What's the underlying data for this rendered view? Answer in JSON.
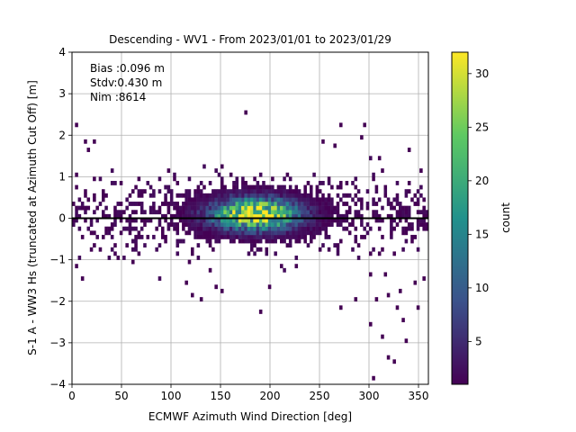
{
  "chart_data": {
    "type": "heatmap",
    "title": "Descending - WV1 - From 2023/01/01 to 2023/01/29",
    "xlabel": "ECMWF Azimuth Wind Direction [deg]",
    "ylabel": "S-1 A - WW3 Hs (truncated at Azimuth Cut Off) [m]",
    "xlim": [
      0,
      360
    ],
    "ylim": [
      -4,
      4
    ],
    "xticks": [
      "0",
      "50",
      "100",
      "150",
      "200",
      "250",
      "300",
      "350"
    ],
    "yticks": [
      "4",
      "3",
      "2",
      "1",
      "0",
      "−1",
      "−2",
      "−3",
      "−4"
    ],
    "grid": true,
    "annotations": [
      "Bias :0.096 m",
      "Stdv:0.430 m",
      "Nim :8614"
    ],
    "reference_line_y": 0,
    "colorbar": {
      "label": "count",
      "range": [
        1,
        32
      ],
      "ticks": [
        "30",
        "25",
        "20",
        "15",
        "10",
        "5"
      ],
      "colormap": "viridis"
    },
    "density_summary": {
      "core_band_y": [
        -0.9,
        1.0
      ],
      "peak_x": 185,
      "peak_y": 0.1,
      "peak_count": 32,
      "high_density_x_range": [
        135,
        215
      ]
    },
    "outliers": [
      [
        4,
        2.3
      ],
      [
        13,
        1.9
      ],
      [
        16,
        1.6
      ],
      [
        22,
        1.8
      ],
      [
        10,
        -1.5
      ],
      [
        3,
        -1.2
      ],
      [
        115,
        -1.6
      ],
      [
        122,
        -1.9
      ],
      [
        130,
        -2.0
      ],
      [
        140,
        -1.3
      ],
      [
        146,
        -1.7
      ],
      [
        150,
        -1.8
      ],
      [
        175,
        2.55
      ],
      [
        190,
        -2.25
      ],
      [
        200,
        -1.65
      ],
      [
        210,
        -1.2
      ],
      [
        225,
        -1.15
      ],
      [
        252,
        1.9
      ],
      [
        265,
        1.75
      ],
      [
        270,
        -2.2
      ],
      [
        272,
        2.25
      ],
      [
        285,
        -1.95
      ],
      [
        293,
        1.95
      ],
      [
        300,
        -2.6
      ],
      [
        305,
        -3.85
      ],
      [
        307,
        -2.0
      ],
      [
        312,
        -2.9
      ],
      [
        315,
        -1.4
      ],
      [
        318,
        -3.35
      ],
      [
        320,
        -1.9
      ],
      [
        325,
        -3.5
      ],
      [
        327,
        -2.15
      ],
      [
        330,
        -1.8
      ],
      [
        334,
        -2.5
      ],
      [
        336,
        -3.0
      ],
      [
        345,
        -1.6
      ],
      [
        348,
        -2.2
      ],
      [
        356,
        -1.5
      ],
      [
        295,
        2.2
      ],
      [
        310,
        1.45
      ],
      [
        340,
        1.6
      ]
    ]
  }
}
